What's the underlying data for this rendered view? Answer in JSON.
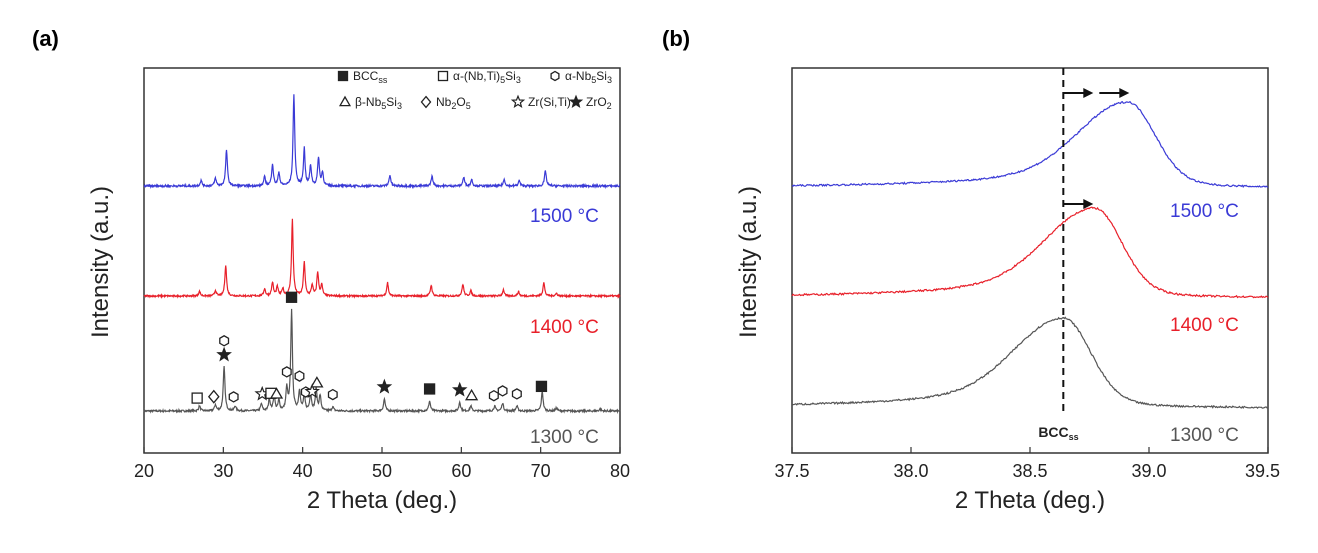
{
  "panel_a_label": "(a)",
  "panel_b_label": "(b)",
  "chart_data": [
    {
      "type": "line",
      "panel": "(a)",
      "xlabel": "2 Theta (deg.)",
      "ylabel": "Intensity (a.u.)",
      "xlim": [
        20,
        80
      ],
      "xticks": [
        20,
        30,
        40,
        50,
        60,
        70,
        80
      ],
      "y_ticks_shown": false,
      "series": [
        {
          "name": "1300 °C",
          "label": "1300 °C",
          "color": "#555555",
          "offset": 0,
          "peaks": [
            {
              "x": 27.0,
              "h": 0.05
            },
            {
              "x": 29.0,
              "h": 0.06
            },
            {
              "x": 30.1,
              "h": 0.44
            },
            {
              "x": 31.5,
              "h": 0.05
            },
            {
              "x": 34.8,
              "h": 0.07
            },
            {
              "x": 35.8,
              "h": 0.12
            },
            {
              "x": 36.4,
              "h": 0.15
            },
            {
              "x": 37.0,
              "h": 0.1
            },
            {
              "x": 38.0,
              "h": 0.22
            },
            {
              "x": 38.6,
              "h": 1.0
            },
            {
              "x": 39.6,
              "h": 0.2
            },
            {
              "x": 40.2,
              "h": 0.16
            },
            {
              "x": 41.0,
              "h": 0.17
            },
            {
              "x": 41.7,
              "h": 0.22
            },
            {
              "x": 42.2,
              "h": 0.15
            },
            {
              "x": 43.8,
              "h": 0.04
            },
            {
              "x": 50.3,
              "h": 0.12
            },
            {
              "x": 56.0,
              "h": 0.1
            },
            {
              "x": 59.8,
              "h": 0.09
            },
            {
              "x": 61.2,
              "h": 0.05
            },
            {
              "x": 64.2,
              "h": 0.05
            },
            {
              "x": 65.2,
              "h": 0.08
            },
            {
              "x": 67.0,
              "h": 0.05
            },
            {
              "x": 70.2,
              "h": 0.2
            },
            {
              "x": 72.0,
              "h": 0.03
            },
            {
              "x": 77.5,
              "h": 0.02
            }
          ]
        },
        {
          "name": "1400 °C",
          "label": "1400 °C",
          "color": "#e8202a",
          "offset": 1,
          "peaks": [
            {
              "x": 27.0,
              "h": 0.05
            },
            {
              "x": 29.0,
              "h": 0.06
            },
            {
              "x": 30.3,
              "h": 0.34
            },
            {
              "x": 35.2,
              "h": 0.08
            },
            {
              "x": 36.2,
              "h": 0.15
            },
            {
              "x": 36.8,
              "h": 0.1
            },
            {
              "x": 37.5,
              "h": 0.08
            },
            {
              "x": 38.7,
              "h": 0.85
            },
            {
              "x": 40.2,
              "h": 0.38
            },
            {
              "x": 41.2,
              "h": 0.12
            },
            {
              "x": 41.9,
              "h": 0.26
            },
            {
              "x": 42.4,
              "h": 0.12
            },
            {
              "x": 50.7,
              "h": 0.15
            },
            {
              "x": 56.2,
              "h": 0.12
            },
            {
              "x": 60.2,
              "h": 0.13
            },
            {
              "x": 61.2,
              "h": 0.06
            },
            {
              "x": 65.3,
              "h": 0.07
            },
            {
              "x": 67.2,
              "h": 0.05
            },
            {
              "x": 70.4,
              "h": 0.15
            },
            {
              "x": 72.0,
              "h": 0.03
            }
          ]
        },
        {
          "name": "1500 °C",
          "label": "1500 °C",
          "color": "#3a3ad6",
          "offset": 2,
          "peaks": [
            {
              "x": 27.2,
              "h": 0.05
            },
            {
              "x": 29.0,
              "h": 0.07
            },
            {
              "x": 30.4,
              "h": 0.33
            },
            {
              "x": 35.2,
              "h": 0.08
            },
            {
              "x": 36.2,
              "h": 0.2
            },
            {
              "x": 37.0,
              "h": 0.12
            },
            {
              "x": 38.9,
              "h": 0.82
            },
            {
              "x": 40.2,
              "h": 0.34
            },
            {
              "x": 41.0,
              "h": 0.18
            },
            {
              "x": 42.0,
              "h": 0.26
            },
            {
              "x": 42.5,
              "h": 0.12
            },
            {
              "x": 51.0,
              "h": 0.1
            },
            {
              "x": 56.3,
              "h": 0.09
            },
            {
              "x": 60.3,
              "h": 0.08
            },
            {
              "x": 61.3,
              "h": 0.06
            },
            {
              "x": 65.4,
              "h": 0.06
            },
            {
              "x": 67.3,
              "h": 0.05
            },
            {
              "x": 70.6,
              "h": 0.14
            }
          ]
        }
      ],
      "phase_markers": [
        {
          "x": 30.1,
          "symbol": "star-filled"
        },
        {
          "x": 30.1,
          "symbol": "hexagon"
        },
        {
          "x": 26.7,
          "symbol": "square-open"
        },
        {
          "x": 28.8,
          "symbol": "diamond"
        },
        {
          "x": 31.3,
          "symbol": "hexagon"
        },
        {
          "x": 34.9,
          "symbol": "star-open"
        },
        {
          "x": 36.0,
          "symbol": "square-open"
        },
        {
          "x": 36.7,
          "symbol": "triangle"
        },
        {
          "x": 38.0,
          "symbol": "hexagon"
        },
        {
          "x": 38.6,
          "symbol": "square-filled"
        },
        {
          "x": 39.6,
          "symbol": "hexagon"
        },
        {
          "x": 40.4,
          "symbol": "hexagon"
        },
        {
          "x": 41.2,
          "symbol": "star-open"
        },
        {
          "x": 41.8,
          "symbol": "triangle"
        },
        {
          "x": 43.8,
          "symbol": "hexagon"
        },
        {
          "x": 50.3,
          "symbol": "star-filled"
        },
        {
          "x": 56.0,
          "symbol": "square-filled"
        },
        {
          "x": 59.8,
          "symbol": "star-filled"
        },
        {
          "x": 61.3,
          "symbol": "triangle"
        },
        {
          "x": 64.1,
          "symbol": "hexagon"
        },
        {
          "x": 65.2,
          "symbol": "hexagon"
        },
        {
          "x": 67.0,
          "symbol": "hexagon"
        },
        {
          "x": 70.1,
          "symbol": "square-filled"
        }
      ],
      "legend": [
        {
          "symbol": "square-filled",
          "label": "BCC",
          "subscript": "ss"
        },
        {
          "symbol": "square-open",
          "label": "α-(Nb,Ti)",
          "subscript": "5",
          "label2": "Si",
          "subscript2": "3"
        },
        {
          "symbol": "hexagon",
          "label": "α-Nb",
          "subscript": "5",
          "label2": "Si",
          "subscript2": "3"
        },
        {
          "symbol": "triangle",
          "label": "β-Nb",
          "subscript": "5",
          "label2": "Si",
          "subscript2": "3"
        },
        {
          "symbol": "diamond",
          "label": "Nb",
          "subscript": "2",
          "label2": "O",
          "subscript2": "5"
        },
        {
          "symbol": "star-open",
          "label": "Zr(Si,Ti)",
          "subscript": "",
          "label2": "",
          "subscript2": ""
        },
        {
          "symbol": "star-filled",
          "label": "ZrO",
          "subscript": "2",
          "label2": "",
          "subscript2": ""
        }
      ]
    },
    {
      "type": "line",
      "panel": "(b)",
      "xlabel": "2 Theta (deg.)",
      "ylabel": "Intensity (a.u.)",
      "xlim": [
        37.5,
        39.5
      ],
      "xticks": [
        37.5,
        38.0,
        38.5,
        39.0,
        39.5
      ],
      "xtick_labels": [
        "37.5",
        "38.0",
        "38.5",
        "39.0",
        "39.5"
      ],
      "y_ticks_shown": false,
      "reference_line": {
        "x": 38.64,
        "style": "dashed",
        "label": "BCC",
        "subscript": "ss"
      },
      "series": [
        {
          "name": "1300 °C",
          "label": "1300 °C",
          "color": "#555555",
          "peak_x": 38.64,
          "peak_h": 1.0
        },
        {
          "name": "1400 °C",
          "label": "1400 °C",
          "color": "#e8202a",
          "peak_x": 38.77,
          "peak_h": 1.0
        },
        {
          "name": "1500 °C",
          "label": "1500 °C",
          "color": "#3a3ad6",
          "peak_x": 38.91,
          "peak_h": 1.0
        }
      ],
      "shift_arrows": [
        {
          "series": "1500 °C",
          "count": 2
        },
        {
          "series": "1400 °C",
          "count": 1
        }
      ]
    }
  ]
}
